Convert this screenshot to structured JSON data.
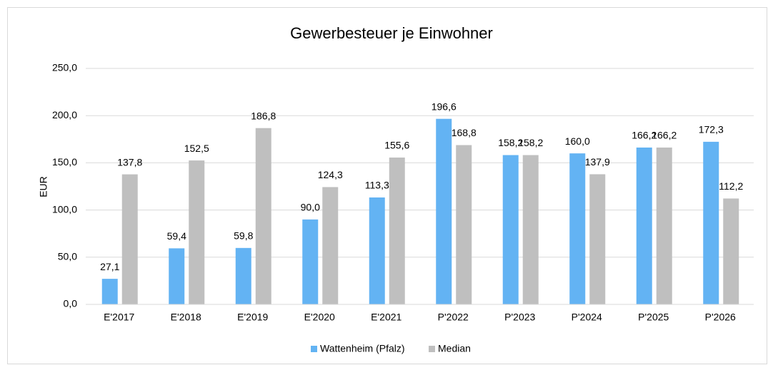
{
  "chart_data": {
    "type": "bar",
    "title": "Gewerbesteuer je Einwohner",
    "y_label": "EUR",
    "categories": [
      "E'2017",
      "E'2018",
      "E'2019",
      "E'2020",
      "E'2021",
      "P'2022",
      "P'2023",
      "P'2024",
      "P'2025",
      "P'2026"
    ],
    "series": [
      {
        "name": "Wattenheim (Pfalz)",
        "color": "#63b3f3",
        "values": [
          27.1,
          59.4,
          59.8,
          90.0,
          113.3,
          196.6,
          158.2,
          160.0,
          166.2,
          172.3
        ],
        "value_labels": [
          "27,1",
          "59,4",
          "59,8",
          "90,0",
          "113,3",
          "196,6",
          "158,2",
          "160,0",
          "166,2",
          "172,3"
        ]
      },
      {
        "name": "Median",
        "color": "#bfbfbf",
        "values": [
          137.8,
          152.5,
          186.8,
          124.3,
          155.6,
          168.8,
          158.2,
          137.9,
          166.2,
          112.2
        ],
        "value_labels": [
          "137,8",
          "152,5",
          "186,8",
          "124,3",
          "155,6",
          "168,8",
          "158,2",
          "137,9",
          "166,2",
          "112,2"
        ]
      }
    ],
    "ylim": [
      0,
      250
    ],
    "yticks": [
      {
        "value": 0,
        "label": "0,0"
      },
      {
        "value": 50,
        "label": "50,0"
      },
      {
        "value": 100,
        "label": "100,0"
      },
      {
        "value": 150,
        "label": "150,0"
      },
      {
        "value": 200,
        "label": "200,0"
      },
      {
        "value": 250,
        "label": "250,0"
      }
    ],
    "grid": true,
    "legend": "bottom"
  }
}
